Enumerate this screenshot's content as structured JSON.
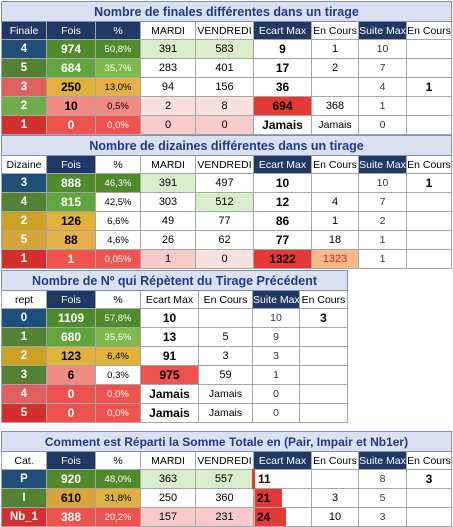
{
  "t1": {
    "title": "Nombre de finales différentes dans un tirage",
    "headers": [
      "Finale",
      "Fois",
      "%",
      "MARDI",
      "VENDREDI",
      "Ecart Max",
      "En Cours",
      "Suite Max",
      "En Cours"
    ],
    "rows": [
      {
        "cat": "4",
        "fois": "974",
        "pct": "50,8%",
        "mardi": "391",
        "vendredi": "583",
        "ecart": "9",
        "encours": "1",
        "suite": "10",
        "encours2": ""
      },
      {
        "cat": "5",
        "fois": "684",
        "pct": "35,7%",
        "mardi": "283",
        "vendredi": "401",
        "ecart": "17",
        "encours": "2",
        "suite": "7",
        "encours2": ""
      },
      {
        "cat": "3",
        "fois": "250",
        "pct": "13,0%",
        "mardi": "94",
        "vendredi": "156",
        "ecart": "36",
        "encours": "",
        "suite": "4",
        "encours2": "1"
      },
      {
        "cat": "2",
        "fois": "10",
        "pct": "0,5%",
        "mardi": "2",
        "vendredi": "8",
        "ecart": "694",
        "encours": "368",
        "suite": "1",
        "encours2": ""
      },
      {
        "cat": "1",
        "fois": "0",
        "pct": "0,0%",
        "mardi": "0",
        "vendredi": "0",
        "ecart": "Jamais",
        "encours": "Jamais",
        "suite": "0",
        "encours2": ""
      }
    ]
  },
  "t2": {
    "title": "Nombre de dizaines différentes dans un tirage",
    "headers": [
      "Dizaine",
      "Fois",
      "%",
      "MARDI",
      "VENDREDI",
      "Ecart Max",
      "En Cours",
      "Suite Max",
      "En Cours"
    ],
    "rows": [
      {
        "cat": "3",
        "fois": "888",
        "pct": "46,3%",
        "mardi": "391",
        "vendredi": "497",
        "ecart": "10",
        "encours": "",
        "suite": "10",
        "encours2": "1"
      },
      {
        "cat": "4",
        "fois": "815",
        "pct": "42,5%",
        "mardi": "303",
        "vendredi": "512",
        "ecart": "12",
        "encours": "4",
        "suite": "7",
        "encours2": ""
      },
      {
        "cat": "2",
        "fois": "126",
        "pct": "6,6%",
        "mardi": "49",
        "vendredi": "77",
        "ecart": "86",
        "encours": "1",
        "suite": "2",
        "encours2": ""
      },
      {
        "cat": "5",
        "fois": "88",
        "pct": "4,6%",
        "mardi": "26",
        "vendredi": "62",
        "ecart": "77",
        "encours": "18",
        "suite": "1",
        "encours2": ""
      },
      {
        "cat": "1",
        "fois": "1",
        "pct": "0,05%",
        "mardi": "1",
        "vendredi": "0",
        "ecart": "1322",
        "encours": "1323",
        "suite": "1",
        "encours2": ""
      }
    ]
  },
  "t3": {
    "title": "Nombre de Nº qui Répètent du Tirage Précédent",
    "headers": [
      "rept",
      "Fois",
      "%",
      "Ecart Max",
      "En Cours",
      "Suite Max",
      "En Cours"
    ],
    "rows": [
      {
        "cat": "0",
        "fois": "1109",
        "pct": "57,8%",
        "ecart": "10",
        "encours": "",
        "suite": "10",
        "encours2": "3"
      },
      {
        "cat": "1",
        "fois": "680",
        "pct": "35,5%",
        "ecart": "13",
        "encours": "5",
        "suite": "9",
        "encours2": ""
      },
      {
        "cat": "2",
        "fois": "123",
        "pct": "6,4%",
        "ecart": "91",
        "encours": "3",
        "suite": "3",
        "encours2": ""
      },
      {
        "cat": "3",
        "fois": "6",
        "pct": "0,3%",
        "ecart": "975",
        "encours": "59",
        "suite": "1",
        "encours2": ""
      },
      {
        "cat": "4",
        "fois": "0",
        "pct": "0,0%",
        "ecart": "Jamais",
        "encours": "Jamais",
        "suite": "0",
        "encours2": ""
      },
      {
        "cat": "5",
        "fois": "0",
        "pct": "0,0%",
        "ecart": "Jamais",
        "encours": "Jamais",
        "suite": "0",
        "encours2": ""
      }
    ]
  },
  "t4": {
    "title": "Comment est Réparti la Somme Totale en (Pair, Impair et Nb1er)",
    "headers": [
      "Cat.",
      "Fois",
      "%",
      "MARDI",
      "VENDREDI",
      "Ecart Max",
      "En Cours",
      "Suite Max",
      "En Cours"
    ],
    "rows": [
      {
        "cat": "P",
        "fois": "920",
        "pct": "48,0%",
        "mardi": "363",
        "vendredi": "557",
        "ecart": "11",
        "encours": "",
        "suite": "8",
        "encours2": "3"
      },
      {
        "cat": "I",
        "fois": "610",
        "pct": "31,8%",
        "mardi": "250",
        "vendredi": "360",
        "ecart": "21",
        "encours": "3",
        "suite": "5",
        "encours2": ""
      },
      {
        "cat": "Nb_1",
        "fois": "388",
        "pct": "20,2%",
        "mardi": "157",
        "vendredi": "231",
        "ecart": "24",
        "encours": "10",
        "suite": "3",
        "encours2": ""
      }
    ]
  }
}
